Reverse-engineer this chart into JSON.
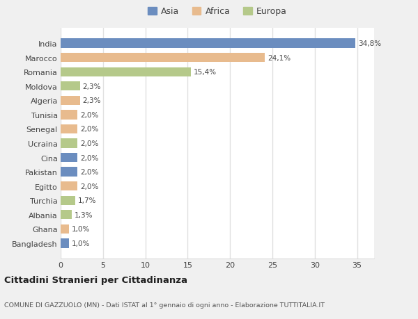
{
  "countries": [
    "India",
    "Marocco",
    "Romania",
    "Moldova",
    "Algeria",
    "Tunisia",
    "Senegal",
    "Ucraina",
    "Cina",
    "Pakistan",
    "Egitto",
    "Turchia",
    "Albania",
    "Ghana",
    "Bangladesh"
  ],
  "values": [
    34.8,
    24.1,
    15.4,
    2.3,
    2.3,
    2.0,
    2.0,
    2.0,
    2.0,
    2.0,
    2.0,
    1.7,
    1.3,
    1.0,
    1.0
  ],
  "labels": [
    "34,8%",
    "24,1%",
    "15,4%",
    "2,3%",
    "2,3%",
    "2,0%",
    "2,0%",
    "2,0%",
    "2,0%",
    "2,0%",
    "2,0%",
    "1,7%",
    "1,3%",
    "1,0%",
    "1,0%"
  ],
  "continent": [
    "Asia",
    "Africa",
    "Europa",
    "Europa",
    "Africa",
    "Africa",
    "Africa",
    "Europa",
    "Asia",
    "Asia",
    "Africa",
    "Europa",
    "Europa",
    "Africa",
    "Asia"
  ],
  "colors": {
    "Asia": "#6b8dbf",
    "Africa": "#e8bb8e",
    "Europa": "#b5c98a"
  },
  "xlim": [
    0,
    37
  ],
  "xticks": [
    0,
    5,
    10,
    15,
    20,
    25,
    30,
    35
  ],
  "title1": "Cittadini Stranieri per Cittadinanza",
  "title2": "COMUNE DI GAZZUOLO (MN) - Dati ISTAT al 1° gennaio di ogni anno - Elaborazione TUTTITALIA.IT",
  "background_color": "#f0f0f0",
  "plot_bg_color": "#ffffff",
  "grid_color": "#e0e0e0",
  "bar_height": 0.65
}
